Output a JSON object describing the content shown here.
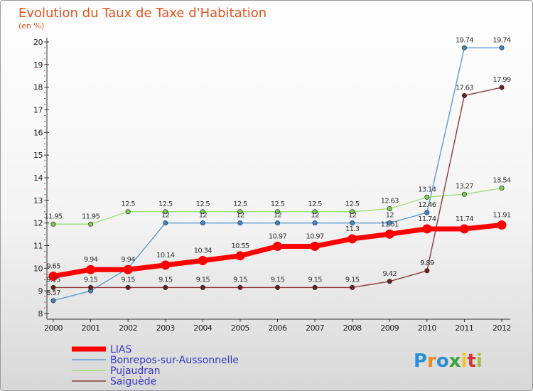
{
  "header": {
    "title": "Evolution du Taux de Taxe d'Habitation",
    "subtitle": "(en %)"
  },
  "brand": {
    "letters": [
      "P",
      "r",
      "o",
      "x",
      "i",
      "t",
      "i"
    ],
    "colors": [
      "#2a8fd6",
      "#f08a1c",
      "#2a8fd6",
      "#3aa33a",
      "#f0c21c",
      "#e0302f",
      "#9ac43a"
    ]
  },
  "chart_data": {
    "type": "line",
    "x": [
      "2000",
      "2001",
      "2002",
      "2003",
      "2004",
      "2005",
      "2006",
      "2007",
      "2008",
      "2009",
      "2010",
      "2011",
      "2012"
    ],
    "ylim": [
      8,
      20
    ],
    "yticks": [
      "8",
      "9",
      "10",
      "11",
      "12",
      "13",
      "14",
      "15",
      "16",
      "17",
      "18",
      "19",
      "20"
    ],
    "grid": false,
    "legend_position": "bottom-left",
    "series": [
      {
        "name": "Bonrepos-sur-Aussonnelle",
        "color": "#5b9bd5",
        "dot": "#3f86c6",
        "values": [
          8.57,
          9.0,
          10.0,
          12,
          12,
          12,
          12,
          12,
          12,
          12,
          12.46,
          19.74,
          19.74
        ],
        "labels": [
          "8.57",
          "",
          "",
          "12",
          "12",
          "12",
          "12",
          "12",
          "12",
          "12",
          "12.46",
          "19.74",
          "19.74"
        ]
      },
      {
        "name": "Pujaudran",
        "color": "#9ee07a",
        "dot": "#7ccc4a",
        "values": [
          11.95,
          11.95,
          12.5,
          12.5,
          12.5,
          12.5,
          12.5,
          12.5,
          12.5,
          12.63,
          13.14,
          13.27,
          13.54
        ],
        "labels": [
          "11.95",
          "11.95",
          "12.5",
          "12.5",
          "12.5",
          "12.5",
          "12.5",
          "12.5",
          "12.5",
          "12.63",
          "13.14",
          "13.27",
          "13.54"
        ]
      },
      {
        "name": "Saiguède",
        "color": "#8b3a3a",
        "dot": "#6b1f1f",
        "values": [
          9.15,
          9.15,
          9.15,
          9.15,
          9.15,
          9.15,
          9.15,
          9.15,
          9.15,
          9.42,
          9.89,
          17.63,
          17.99
        ],
        "labels": [
          "9.15",
          "9.15",
          "9.15",
          "9.15",
          "9.15",
          "9.15",
          "9.15",
          "9.15",
          "9.15",
          "9.42",
          "9.89",
          "17.63",
          "17.99"
        ]
      },
      {
        "name": "LIAS",
        "color": "#ff0000",
        "dot": "#ff0000",
        "values": [
          9.65,
          9.94,
          9.94,
          10.14,
          10.34,
          10.55,
          10.97,
          10.97,
          11.3,
          11.51,
          11.74,
          11.74,
          11.91
        ],
        "labels": [
          "9.65",
          "9.94",
          "9.94",
          "10.14",
          "10.34",
          "10.55",
          "10.97",
          "10.97",
          "11.3",
          "11.51",
          "11.74",
          "11.74",
          "11.91"
        ]
      }
    ],
    "legend": [
      "LIAS",
      "Bonrepos-sur-Aussonnelle",
      "Pujaudran",
      "Saiguède"
    ]
  }
}
